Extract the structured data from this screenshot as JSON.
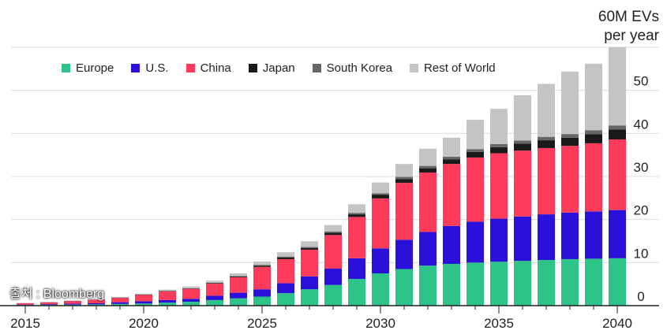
{
  "chart_data": {
    "type": "bar",
    "stacked": true,
    "title": "",
    "unit_label_lines": [
      "60M EVs",
      "per year"
    ],
    "x": [
      2015,
      2016,
      2017,
      2018,
      2019,
      2020,
      2021,
      2022,
      2023,
      2024,
      2025,
      2026,
      2027,
      2028,
      2029,
      2030,
      2031,
      2032,
      2033,
      2034,
      2035,
      2036,
      2037,
      2038,
      2039,
      2040
    ],
    "x_tick_labels": [
      "2015",
      "2020",
      "2025",
      "2030",
      "2035",
      "2040"
    ],
    "y_tick_labels": [
      "0",
      "10",
      "20",
      "30",
      "40",
      "50"
    ],
    "ylim": [
      0,
      60
    ],
    "grid": true,
    "legend_position": "top-left",
    "series": [
      {
        "name": "Europe",
        "color": "#2ec489",
        "values": [
          0.15,
          0.2,
          0.25,
          0.3,
          0.4,
          0.5,
          0.7,
          0.9,
          1.3,
          1.7,
          2.1,
          2.9,
          3.8,
          4.8,
          6.2,
          7.5,
          8.5,
          9.3,
          9.7,
          10.0,
          10.2,
          10.4,
          10.6,
          10.8,
          10.9,
          11.0
        ]
      },
      {
        "name": "U.S.",
        "color": "#2a10d8",
        "values": [
          0.1,
          0.15,
          0.2,
          0.25,
          0.4,
          0.5,
          0.6,
          0.7,
          1.0,
          1.3,
          1.7,
          2.3,
          3.0,
          3.8,
          4.8,
          5.8,
          6.8,
          7.8,
          8.8,
          9.5,
          10.0,
          10.3,
          10.6,
          10.8,
          11.0,
          11.2
        ]
      },
      {
        "name": "China",
        "color": "#ff3b5c",
        "values": [
          0.3,
          0.4,
          0.6,
          0.8,
          1.0,
          1.5,
          2.0,
          2.3,
          2.8,
          3.6,
          5.2,
          5.6,
          6.2,
          7.8,
          9.6,
          11.6,
          13.2,
          13.8,
          14.4,
          14.9,
          15.2,
          15.3,
          15.4,
          15.5,
          15.8,
          16.4
        ]
      },
      {
        "name": "Japan",
        "color": "#1a1a1a",
        "values": [
          0.02,
          0.03,
          0.04,
          0.05,
          0.06,
          0.07,
          0.08,
          0.1,
          0.12,
          0.2,
          0.3,
          0.4,
          0.4,
          0.5,
          0.6,
          0.8,
          0.9,
          1.0,
          1.1,
          1.3,
          1.4,
          1.6,
          1.8,
          1.9,
          2.1,
          2.3
        ]
      },
      {
        "name": "South Korea",
        "color": "#666666",
        "values": [
          0.01,
          0.02,
          0.02,
          0.03,
          0.03,
          0.04,
          0.05,
          0.06,
          0.08,
          0.1,
          0.15,
          0.2,
          0.25,
          0.3,
          0.35,
          0.4,
          0.5,
          0.55,
          0.6,
          0.65,
          0.7,
          0.75,
          0.8,
          0.85,
          0.9,
          0.95
        ]
      },
      {
        "name": "Rest of World",
        "color": "#c4c4c4",
        "values": [
          0.02,
          0.05,
          0.1,
          0.1,
          0.15,
          0.2,
          0.3,
          0.4,
          0.5,
          0.6,
          0.8,
          1.0,
          1.3,
          1.5,
          2.0,
          2.5,
          3.0,
          4.0,
          4.4,
          6.8,
          8.2,
          10.5,
          12.3,
          14.5,
          15.5,
          18.2
        ]
      }
    ]
  },
  "source_label": "출처 : Bloomberg"
}
